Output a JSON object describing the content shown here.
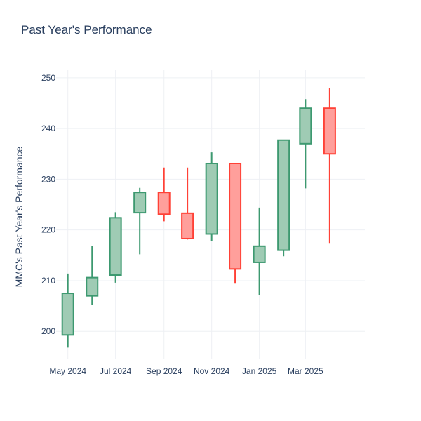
{
  "chart_data": {
    "type": "candlestick",
    "title": "Past Year's Performance",
    "xlabel": "",
    "ylabel": "MMC's Past Year's Performance",
    "ylim": [
      194.5,
      251.5
    ],
    "yticks": [
      200,
      210,
      220,
      230,
      240,
      250
    ],
    "xlim": [
      "2024-04-16",
      "2025-05-16"
    ],
    "xticks": [
      {
        "date": "2024-05-01",
        "label": "May 2024"
      },
      {
        "date": "2024-07-01",
        "label": "Jul 2024"
      },
      {
        "date": "2024-09-01",
        "label": "Sep 2024"
      },
      {
        "date": "2024-11-01",
        "label": "Nov 2024"
      },
      {
        "date": "2025-01-01",
        "label": "Jan 2025"
      },
      {
        "date": "2025-03-01",
        "label": "Mar 2025"
      }
    ],
    "grid": true,
    "colors": {
      "increasing_line": "#3d9970",
      "increasing_fill": "#9fcbb4",
      "decreasing_line": "#ff4136",
      "decreasing_fill": "#ff9f9b",
      "grid": "#eef0f4",
      "text": "#2a3f5f"
    },
    "candles": [
      {
        "date": "2024-05-01",
        "open": 199.3,
        "high": 211.4,
        "low": 196.8,
        "close": 207.5
      },
      {
        "date": "2024-06-01",
        "open": 207.0,
        "high": 216.8,
        "low": 205.2,
        "close": 210.6
      },
      {
        "date": "2024-07-01",
        "open": 211.1,
        "high": 223.5,
        "low": 209.6,
        "close": 222.4
      },
      {
        "date": "2024-08-01",
        "open": 223.4,
        "high": 228.3,
        "low": 215.2,
        "close": 227.4
      },
      {
        "date": "2024-09-01",
        "open": 227.4,
        "high": 232.3,
        "low": 221.7,
        "close": 223.1
      },
      {
        "date": "2024-10-01",
        "open": 223.3,
        "high": 232.3,
        "low": 218.1,
        "close": 218.3
      },
      {
        "date": "2024-11-01",
        "open": 219.2,
        "high": 235.3,
        "low": 217.8,
        "close": 233.1
      },
      {
        "date": "2024-12-01",
        "open": 233.1,
        "high": 233.1,
        "low": 209.4,
        "close": 212.3
      },
      {
        "date": "2025-01-01",
        "open": 213.6,
        "high": 224.4,
        "low": 207.2,
        "close": 216.8
      },
      {
        "date": "2025-02-01",
        "open": 216.0,
        "high": 237.8,
        "low": 214.8,
        "close": 237.7
      },
      {
        "date": "2025-03-01",
        "open": 237.0,
        "high": 245.8,
        "low": 228.2,
        "close": 244.0
      },
      {
        "date": "2025-04-01",
        "open": 244.0,
        "high": 247.9,
        "low": 217.3,
        "close": 235.0
      }
    ]
  }
}
